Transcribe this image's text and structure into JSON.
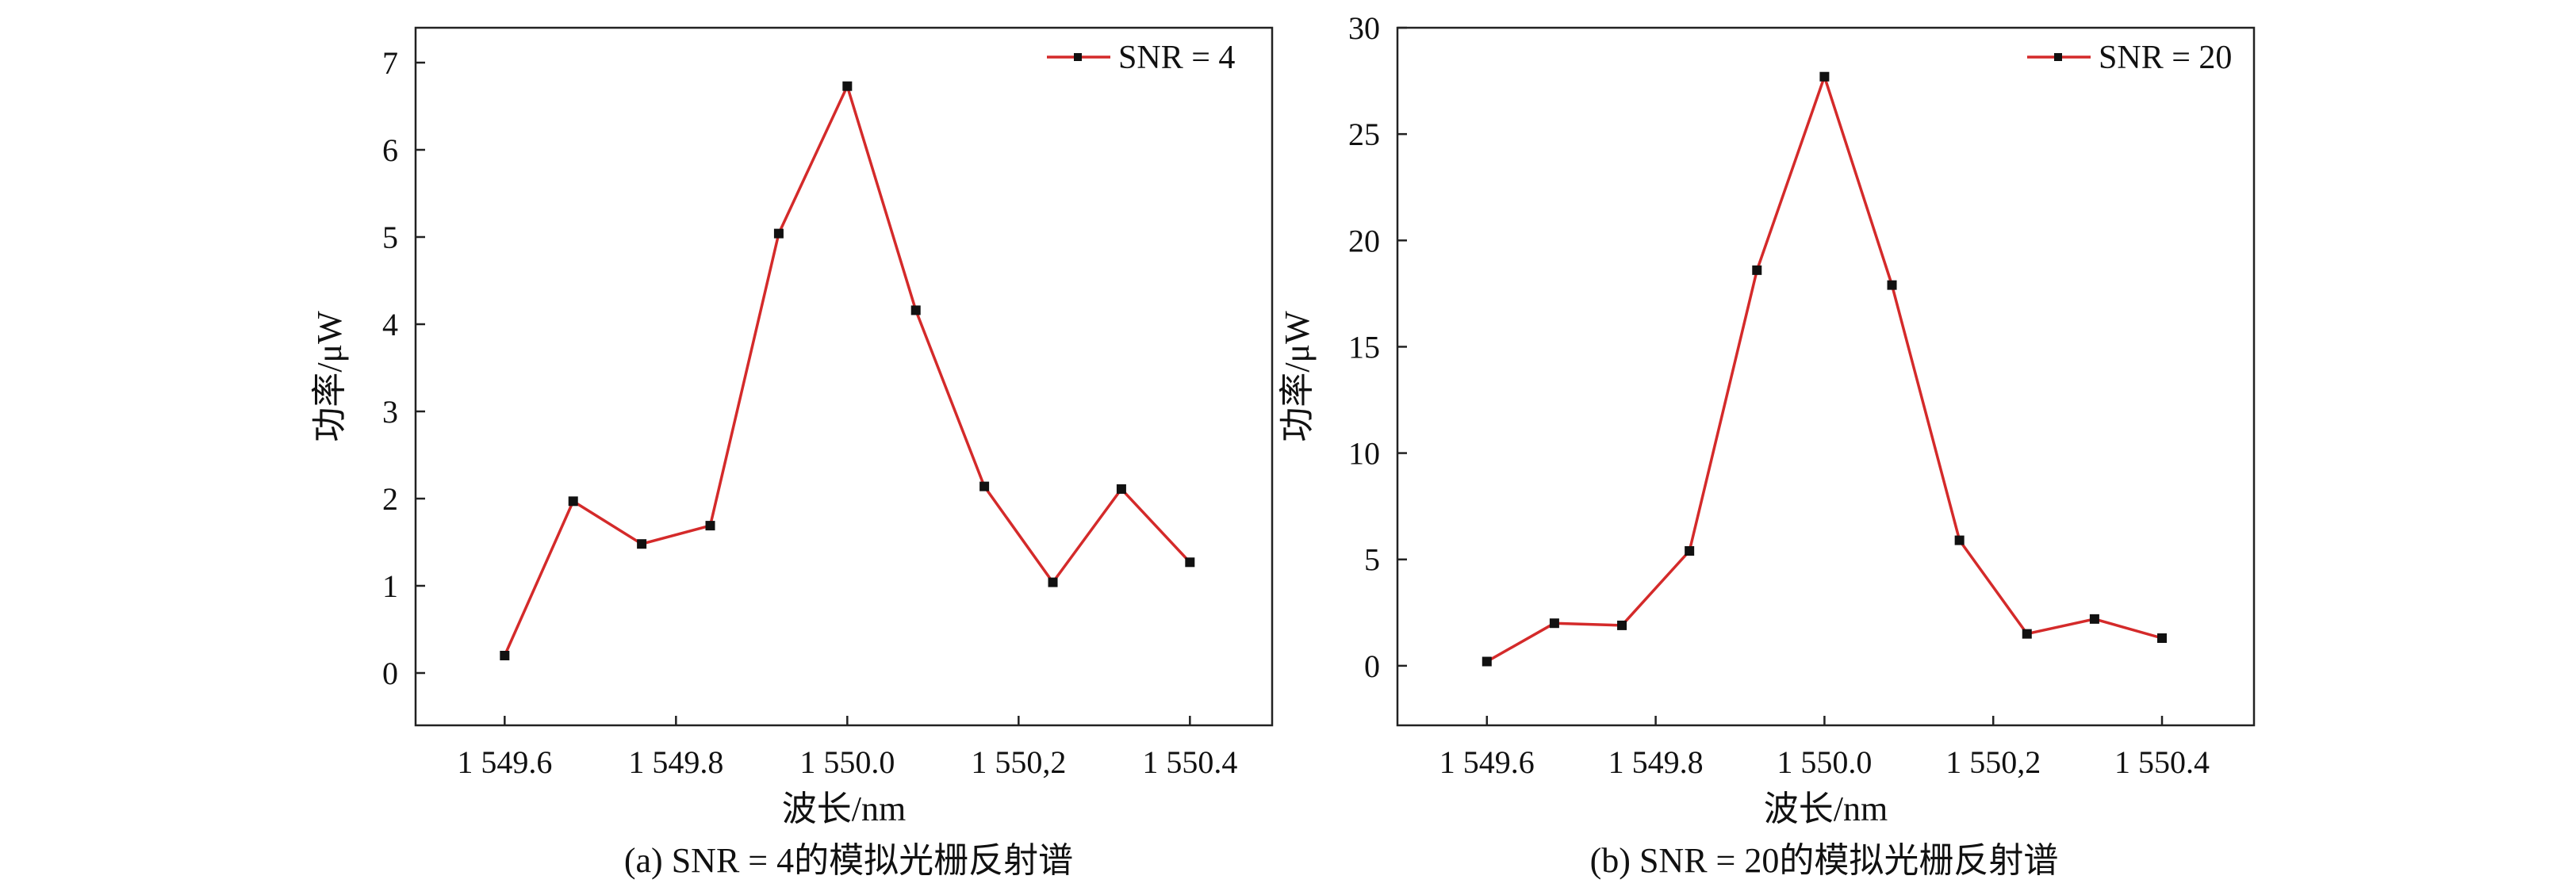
{
  "chart_data": [
    {
      "type": "line",
      "panel": "a",
      "xlabel": "波长/nm",
      "ylabel": "功率/μW",
      "caption": "(a) SNR = 4的模拟光栅反射谱",
      "x_ticks": [
        {
          "value": 1549.6,
          "label": "1 549.6"
        },
        {
          "value": 1549.8,
          "label": "1 549.8"
        },
        {
          "value": 1550.0,
          "label": "1 550.0"
        },
        {
          "value": 1550.2,
          "label": "1 550,2"
        },
        {
          "value": 1550.4,
          "label": "1 550.4"
        }
      ],
      "y_ticks": [
        0,
        1,
        2,
        3,
        4,
        5,
        6,
        7
      ],
      "xlim": [
        1549.496,
        1550.496
      ],
      "ylim": [
        -0.6,
        7.4
      ],
      "legend_position": "top-right",
      "grid": false,
      "series": [
        {
          "name": "SNR = 4",
          "color": "#d42a2a",
          "marker_color": "#111111",
          "x": [
            1549.6,
            1549.68,
            1549.76,
            1549.84,
            1549.92,
            1550.0,
            1550.08,
            1550.16,
            1550.24,
            1550.32,
            1550.4
          ],
          "y": [
            0.2,
            1.97,
            1.48,
            1.69,
            5.04,
            6.73,
            4.16,
            2.14,
            1.04,
            2.11,
            1.27
          ]
        }
      ]
    },
    {
      "type": "line",
      "panel": "b",
      "xlabel": "波长/nm",
      "ylabel": "功率/μW",
      "caption": "(b) SNR = 20的模拟光栅反射谱",
      "x_ticks": [
        {
          "value": 1549.6,
          "label": "1 549.6"
        },
        {
          "value": 1549.8,
          "label": "1 549.8"
        },
        {
          "value": 1550.0,
          "label": "1 550.0"
        },
        {
          "value": 1550.2,
          "label": "1 550,2"
        },
        {
          "value": 1550.4,
          "label": "1 550.4"
        }
      ],
      "y_ticks": [
        0,
        5,
        10,
        15,
        20,
        25,
        30
      ],
      "xlim": [
        1549.494,
        1550.509
      ],
      "ylim": [
        -2.8,
        30.0
      ],
      "legend_position": "top-right",
      "grid": false,
      "series": [
        {
          "name": "SNR = 20",
          "color": "#d42a2a",
          "marker_color": "#111111",
          "x": [
            1549.6,
            1549.68,
            1549.76,
            1549.84,
            1549.92,
            1550.0,
            1550.08,
            1550.16,
            1550.24,
            1550.32,
            1550.4
          ],
          "y": [
            0.2,
            2.0,
            1.9,
            5.4,
            18.6,
            27.7,
            17.9,
            5.9,
            1.5,
            2.2,
            1.3
          ]
        }
      ]
    }
  ]
}
